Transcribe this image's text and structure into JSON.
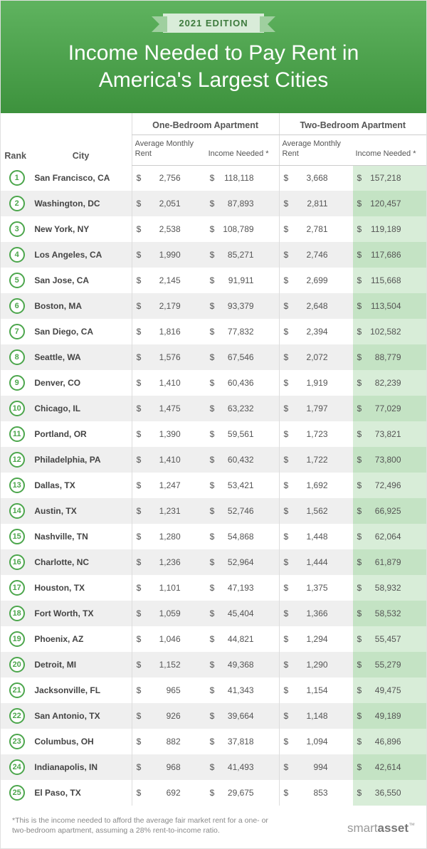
{
  "header": {
    "ribbon": "2021 EDITION",
    "title": "Income Needed to Pay Rent in America's Largest Cities",
    "bg_gradient_top": "#5fb35f",
    "bg_gradient_bottom": "#3d923d"
  },
  "table": {
    "columns": {
      "rank": "Rank",
      "city": "City",
      "group_one": "One-Bedroom Apartment",
      "group_two": "Two-Bedroom Apartment",
      "avg_rent": "Average Monthly Rent",
      "income": "Income Needed *"
    },
    "rows": [
      {
        "rank": 1,
        "city": "San Francisco, CA",
        "one_rent": "2,756",
        "one_inc": "118,118",
        "two_rent": "3,668",
        "two_inc": "157,218"
      },
      {
        "rank": 2,
        "city": "Washington, DC",
        "one_rent": "2,051",
        "one_inc": "87,893",
        "two_rent": "2,811",
        "two_inc": "120,457"
      },
      {
        "rank": 3,
        "city": "New York, NY",
        "one_rent": "2,538",
        "one_inc": "108,789",
        "two_rent": "2,781",
        "two_inc": "119,189"
      },
      {
        "rank": 4,
        "city": "Los Angeles, CA",
        "one_rent": "1,990",
        "one_inc": "85,271",
        "two_rent": "2,746",
        "two_inc": "117,686"
      },
      {
        "rank": 5,
        "city": "San Jose, CA",
        "one_rent": "2,145",
        "one_inc": "91,911",
        "two_rent": "2,699",
        "two_inc": "115,668"
      },
      {
        "rank": 6,
        "city": "Boston, MA",
        "one_rent": "2,179",
        "one_inc": "93,379",
        "two_rent": "2,648",
        "two_inc": "113,504"
      },
      {
        "rank": 7,
        "city": "San Diego, CA",
        "one_rent": "1,816",
        "one_inc": "77,832",
        "two_rent": "2,394",
        "two_inc": "102,582"
      },
      {
        "rank": 8,
        "city": "Seattle, WA",
        "one_rent": "1,576",
        "one_inc": "67,546",
        "two_rent": "2,072",
        "two_inc": "88,779"
      },
      {
        "rank": 9,
        "city": "Denver, CO",
        "one_rent": "1,410",
        "one_inc": "60,436",
        "two_rent": "1,919",
        "two_inc": "82,239"
      },
      {
        "rank": 10,
        "city": "Chicago, IL",
        "one_rent": "1,475",
        "one_inc": "63,232",
        "two_rent": "1,797",
        "two_inc": "77,029"
      },
      {
        "rank": 11,
        "city": "Portland, OR",
        "one_rent": "1,390",
        "one_inc": "59,561",
        "two_rent": "1,723",
        "two_inc": "73,821"
      },
      {
        "rank": 12,
        "city": "Philadelphia, PA",
        "one_rent": "1,410",
        "one_inc": "60,432",
        "two_rent": "1,722",
        "two_inc": "73,800"
      },
      {
        "rank": 13,
        "city": "Dallas, TX",
        "one_rent": "1,247",
        "one_inc": "53,421",
        "two_rent": "1,692",
        "two_inc": "72,496"
      },
      {
        "rank": 14,
        "city": "Austin, TX",
        "one_rent": "1,231",
        "one_inc": "52,746",
        "two_rent": "1,562",
        "two_inc": "66,925"
      },
      {
        "rank": 15,
        "city": "Nashville, TN",
        "one_rent": "1,280",
        "one_inc": "54,868",
        "two_rent": "1,448",
        "two_inc": "62,064"
      },
      {
        "rank": 16,
        "city": "Charlotte, NC",
        "one_rent": "1,236",
        "one_inc": "52,964",
        "two_rent": "1,444",
        "two_inc": "61,879"
      },
      {
        "rank": 17,
        "city": "Houston, TX",
        "one_rent": "1,101",
        "one_inc": "47,193",
        "two_rent": "1,375",
        "two_inc": "58,932"
      },
      {
        "rank": 18,
        "city": "Fort Worth, TX",
        "one_rent": "1,059",
        "one_inc": "45,404",
        "two_rent": "1,366",
        "two_inc": "58,532"
      },
      {
        "rank": 19,
        "city": "Phoenix, AZ",
        "one_rent": "1,046",
        "one_inc": "44,821",
        "two_rent": "1,294",
        "two_inc": "55,457"
      },
      {
        "rank": 20,
        "city": "Detroit, MI",
        "one_rent": "1,152",
        "one_inc": "49,368",
        "two_rent": "1,290",
        "two_inc": "55,279"
      },
      {
        "rank": 21,
        "city": "Jacksonville, FL",
        "one_rent": "965",
        "one_inc": "41,343",
        "two_rent": "1,154",
        "two_inc": "49,475"
      },
      {
        "rank": 22,
        "city": "San Antonio, TX",
        "one_rent": "926",
        "one_inc": "39,664",
        "two_rent": "1,148",
        "two_inc": "49,189"
      },
      {
        "rank": 23,
        "city": "Columbus, OH",
        "one_rent": "882",
        "one_inc": "37,818",
        "two_rent": "1,094",
        "two_inc": "46,896"
      },
      {
        "rank": 24,
        "city": "Indianapolis, IN",
        "one_rent": "968",
        "one_inc": "41,493",
        "two_rent": "994",
        "two_inc": "42,614"
      },
      {
        "rank": 25,
        "city": "El Paso, TX",
        "one_rent": "692",
        "one_inc": "29,675",
        "two_rent": "853",
        "two_inc": "36,550"
      }
    ],
    "highlight_color_odd": "#d8edd8",
    "highlight_color_even": "#c4e3c4",
    "stripe_color": "#efefef",
    "badge_border": "#4ca64c"
  },
  "footer": {
    "note": "*This is the income needed to afford the average fair market rent for a one- or two-bedroom apartment, assuming a 28% rent-to-income ratio.",
    "brand_light": "smart",
    "brand_bold": "asset",
    "tm": "™"
  }
}
